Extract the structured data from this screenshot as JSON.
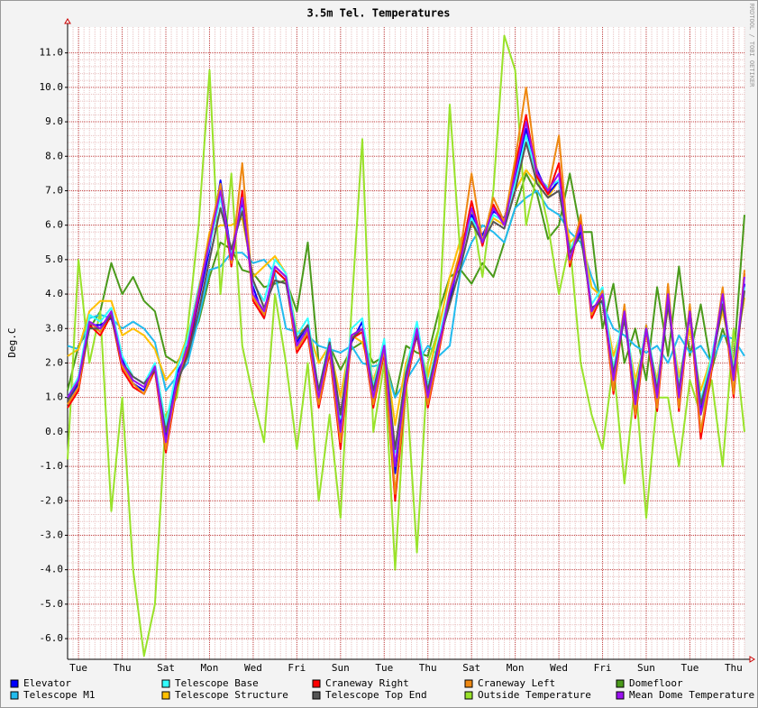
{
  "chart_data": {
    "type": "line",
    "title": "3.5m Tel. Temperatures",
    "y_label": "Deg.C",
    "watermark": "RRDTOOL / TOBI OETIKER",
    "grid": true,
    "ylim": [
      -6.6,
      11.75
    ],
    "yticks": [
      {
        "value": -6,
        "label": "-6.0"
      },
      {
        "value": -5,
        "label": "-5.0"
      },
      {
        "value": -4,
        "label": "-4.0"
      },
      {
        "value": -3,
        "label": "-3.0"
      },
      {
        "value": -2,
        "label": "-2.0"
      },
      {
        "value": -1,
        "label": "-1.0"
      },
      {
        "value": 0,
        "label": "0.0"
      },
      {
        "value": 1,
        "label": "1.0"
      },
      {
        "value": 2,
        "label": "2.0"
      },
      {
        "value": 3,
        "label": "3.0"
      },
      {
        "value": 4,
        "label": "4.0"
      },
      {
        "value": 5,
        "label": "5.0"
      },
      {
        "value": 6,
        "label": "6.0"
      },
      {
        "value": 7,
        "label": "7.0"
      },
      {
        "value": 8,
        "label": "8.0"
      },
      {
        "value": 9,
        "label": "9.0"
      },
      {
        "value": 10,
        "label": "10.0"
      },
      {
        "value": 11,
        "label": "11.0"
      }
    ],
    "categories": [
      null,
      "Tue",
      null,
      null,
      null,
      "Thu",
      null,
      null,
      null,
      "Sat",
      null,
      null,
      null,
      "Mon",
      null,
      null,
      null,
      "Wed",
      null,
      null,
      null,
      "Fri",
      null,
      null,
      null,
      "Sun",
      null,
      null,
      null,
      "Tue",
      null,
      null,
      null,
      "Thu",
      null,
      null,
      null,
      "Sat",
      null,
      null,
      null,
      "Mon",
      null,
      null,
      null,
      "Wed",
      null,
      null,
      null,
      "Fri",
      null,
      null,
      null,
      "Sun",
      null,
      null,
      null,
      "Tue",
      null,
      null,
      null,
      "Thu",
      null
    ],
    "series": [
      {
        "name": "Elevator",
        "color": "#0000ff",
        "values": [
          0.9,
          1.4,
          3.1,
          3.1,
          3.3,
          2.1,
          1.4,
          1.2,
          1.8,
          -0.2,
          1.7,
          2.3,
          3.8,
          5.3,
          7.3,
          5.1,
          6.6,
          4.2,
          3.3,
          4.7,
          4.4,
          2.6,
          3.1,
          0.9,
          2.7,
          0.1,
          2.6,
          3.2,
          0.9,
          2.4,
          -1.2,
          1.6,
          2.8,
          1.1,
          2.6,
          3.8,
          5.2,
          6.3,
          5.7,
          6.4,
          6.2,
          7.3,
          8.8,
          7.6,
          6.9,
          7.3,
          5.2,
          5.8,
          3.6,
          3.8,
          1.6,
          3.3,
          0.9,
          3.1,
          0.9,
          3.8,
          1.1,
          3.6,
          0.6,
          1.9,
          3.8,
          1.6,
          4.3
        ]
      },
      {
        "name": "Telescope Base",
        "color": "#33ffff",
        "values": [
          1.0,
          1.6,
          3.4,
          3.2,
          3.6,
          2.2,
          1.6,
          1.4,
          2.0,
          0.2,
          1.8,
          2.7,
          4.2,
          5.4,
          6.8,
          5.2,
          6.5,
          4.3,
          3.8,
          5.0,
          4.6,
          2.8,
          3.3,
          1.2,
          2.7,
          0.4,
          3.0,
          3.3,
          1.3,
          2.7,
          -0.6,
          1.8,
          3.2,
          1.3,
          2.7,
          4.1,
          5.2,
          6.2,
          5.6,
          6.3,
          6.1,
          7.2,
          8.6,
          7.4,
          7.1,
          7.3,
          5.2,
          6.1,
          3.7,
          4.2,
          1.8,
          3.6,
          1.1,
          3.1,
          1.3,
          3.9,
          1.3,
          3.5,
          0.9,
          2.2,
          3.9,
          1.8,
          4.2
        ]
      },
      {
        "name": "Craneway Right",
        "color": "#ff0000",
        "values": [
          0.7,
          1.2,
          3.1,
          2.8,
          3.4,
          1.8,
          1.3,
          1.1,
          1.8,
          -0.6,
          1.3,
          2.4,
          3.9,
          5.6,
          7.1,
          4.8,
          7.0,
          3.8,
          3.3,
          4.7,
          4.4,
          2.3,
          2.8,
          0.7,
          2.3,
          -0.5,
          2.7,
          2.9,
          0.7,
          2.3,
          -2.0,
          1.3,
          2.9,
          0.7,
          2.3,
          4.0,
          5.1,
          6.7,
          5.4,
          6.6,
          6.0,
          7.7,
          9.2,
          7.4,
          6.9,
          7.8,
          4.8,
          6.2,
          3.3,
          4.0,
          1.1,
          3.6,
          0.4,
          3.0,
          0.6,
          4.1,
          0.6,
          3.6,
          -0.2,
          1.8,
          4.1,
          1.0,
          4.6
        ]
      },
      {
        "name": "Craneway Left",
        "color": "#ee8811",
        "values": [
          0.8,
          1.3,
          3.2,
          2.9,
          3.5,
          1.9,
          1.4,
          1.1,
          1.9,
          -0.5,
          1.4,
          2.5,
          4.1,
          5.7,
          7.2,
          4.9,
          7.8,
          3.9,
          3.4,
          4.8,
          4.5,
          2.4,
          2.9,
          0.8,
          2.4,
          -0.3,
          2.8,
          3.0,
          0.8,
          2.4,
          -1.8,
          1.4,
          3.0,
          0.8,
          2.4,
          4.1,
          5.3,
          7.5,
          5.5,
          6.8,
          6.1,
          7.9,
          10.0,
          7.5,
          7.0,
          8.6,
          4.9,
          6.3,
          3.4,
          4.1,
          1.2,
          3.7,
          0.5,
          3.1,
          0.7,
          4.3,
          0.7,
          3.7,
          0.0,
          1.9,
          4.2,
          1.1,
          4.7
        ]
      },
      {
        "name": "Domefloor",
        "color": "#4a9a1a",
        "values": [
          1.2,
          2.5,
          3.0,
          3.5,
          4.9,
          4.0,
          4.5,
          3.8,
          3.5,
          2.2,
          2.0,
          2.5,
          3.2,
          4.5,
          5.5,
          5.3,
          4.7,
          4.6,
          4.2,
          4.3,
          4.4,
          3.5,
          5.5,
          2.0,
          2.5,
          1.8,
          2.4,
          2.6,
          2.0,
          2.2,
          1.0,
          2.5,
          2.3,
          2.2,
          3.5,
          4.5,
          4.7,
          4.3,
          4.9,
          4.5,
          5.5,
          6.5,
          7.5,
          6.9,
          5.6,
          6.0,
          7.5,
          5.8,
          5.8,
          3.0,
          4.3,
          2.0,
          3.0,
          1.5,
          4.2,
          2.2,
          4.8,
          2.2,
          3.7,
          1.8,
          3.0,
          2.0,
          6.3
        ]
      },
      {
        "name": "Telescope M1",
        "color": "#22bbee",
        "values": [
          2.5,
          2.4,
          3.3,
          3.4,
          3.3,
          3.0,
          3.2,
          3.0,
          2.6,
          1.2,
          1.6,
          2.0,
          3.3,
          4.7,
          4.8,
          5.2,
          5.2,
          4.9,
          5.0,
          4.6,
          3.0,
          2.9,
          2.8,
          2.5,
          2.4,
          2.3,
          2.5,
          2.0,
          1.9,
          2.0,
          1.0,
          1.5,
          2.0,
          2.5,
          2.2,
          2.5,
          4.7,
          5.5,
          6.0,
          5.8,
          5.5,
          6.5,
          6.8,
          7.0,
          6.5,
          6.3,
          5.8,
          5.5,
          4.5,
          3.7,
          3.0,
          2.8,
          2.5,
          2.3,
          2.5,
          2.0,
          2.8,
          2.3,
          2.5,
          2.0,
          2.8,
          2.7,
          2.2
        ]
      },
      {
        "name": "Telescope Structure",
        "color": "#ffc000",
        "values": [
          2.2,
          2.4,
          3.5,
          3.8,
          3.8,
          2.8,
          3.0,
          2.8,
          2.4,
          1.5,
          1.9,
          2.8,
          4.0,
          5.8,
          6.0,
          6.0,
          6.2,
          4.5,
          4.8,
          5.1,
          4.6,
          2.9,
          3.0,
          2.0,
          2.5,
          1.0,
          2.8,
          2.6,
          1.5,
          2.5,
          0.2,
          2.0,
          2.8,
          1.6,
          3.0,
          4.5,
          5.6,
          6.0,
          5.7,
          6.2,
          6.0,
          7.0,
          7.6,
          7.2,
          6.8,
          7.3,
          5.5,
          5.8,
          4.2,
          3.9,
          2.2,
          3.2,
          1.5,
          2.8,
          1.5,
          3.6,
          1.6,
          3.0,
          1.2,
          2.2,
          3.5,
          2.0,
          3.9
        ]
      },
      {
        "name": "Telescope Top End",
        "color": "#555555",
        "values": [
          0.9,
          1.5,
          3.0,
          3.0,
          3.4,
          2.0,
          1.6,
          1.4,
          1.8,
          0.0,
          1.4,
          2.2,
          3.5,
          5.0,
          6.5,
          5.3,
          6.4,
          4.4,
          3.6,
          4.4,
          4.3,
          2.7,
          3.1,
          1.2,
          2.6,
          0.5,
          2.7,
          3.0,
          1.2,
          2.5,
          -0.5,
          1.7,
          2.9,
          1.2,
          2.6,
          3.7,
          4.8,
          6.1,
          5.5,
          6.1,
          5.9,
          7.0,
          8.4,
          7.2,
          6.8,
          7.0,
          5.2,
          5.7,
          3.6,
          3.8,
          1.7,
          3.3,
          1.0,
          3.0,
          1.2,
          3.7,
          1.2,
          3.4,
          0.8,
          2.0,
          3.7,
          1.7,
          4.1
        ]
      },
      {
        "name": "Outside Temperature",
        "color": "#99e22a",
        "values": [
          -0.8,
          5.0,
          2.0,
          3.5,
          -2.3,
          1.0,
          -4.0,
          -6.5,
          -5.0,
          0.5,
          1.0,
          3.0,
          6.0,
          10.5,
          4.0,
          7.5,
          2.5,
          1.0,
          -0.3,
          4.0,
          2.0,
          -0.5,
          2.0,
          -2.0,
          0.5,
          -2.5,
          3.5,
          8.5,
          0.0,
          2.0,
          -4.0,
          1.5,
          -3.5,
          2.0,
          3.0,
          9.5,
          5.0,
          6.5,
          4.5,
          7.0,
          11.5,
          10.5,
          6.0,
          7.5,
          6.0,
          4.0,
          5.5,
          2.0,
          0.5,
          -0.5,
          2.0,
          -1.5,
          1.5,
          -2.5,
          1.0,
          1.0,
          -1.0,
          1.5,
          0.5,
          1.5,
          -1.0,
          3.0,
          0.0
        ]
      },
      {
        "name": "Mean Dome Temperature",
        "color": "#9a10f0",
        "values": [
          1.0,
          1.5,
          3.2,
          3.0,
          3.5,
          2.0,
          1.5,
          1.3,
          1.9,
          -0.3,
          1.5,
          2.5,
          4.0,
          5.5,
          7.0,
          5.0,
          6.8,
          4.0,
          3.5,
          4.8,
          4.5,
          2.5,
          3.0,
          1.0,
          2.5,
          0.0,
          2.8,
          3.0,
          1.0,
          2.5,
          -1.0,
          1.5,
          3.0,
          1.0,
          2.5,
          4.0,
          5.0,
          6.5,
          5.5,
          6.5,
          6.0,
          7.5,
          9.0,
          7.5,
          7.0,
          7.5,
          5.0,
          6.0,
          3.5,
          4.0,
          1.5,
          3.5,
          0.8,
          3.0,
          1.0,
          4.0,
          1.0,
          3.5,
          0.5,
          2.0,
          4.0,
          1.5,
          4.5
        ]
      }
    ]
  }
}
